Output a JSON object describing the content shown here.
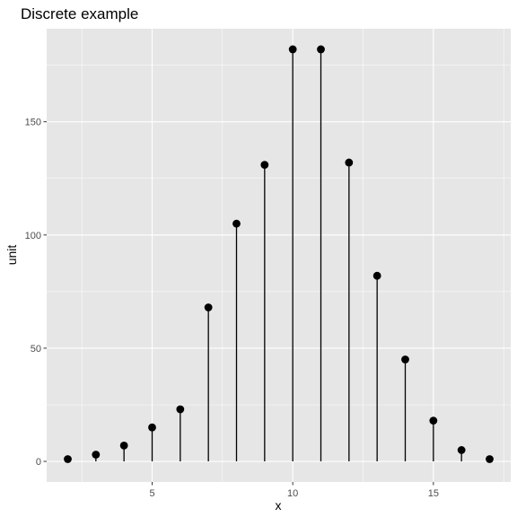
{
  "chart_data": {
    "type": "lollipop",
    "title": "Discrete example",
    "xlabel": "x",
    "ylabel": "unit",
    "x": [
      2,
      3,
      4,
      5,
      6,
      7,
      8,
      9,
      10,
      11,
      12,
      13,
      14,
      15,
      16,
      17
    ],
    "values": [
      1,
      3,
      7,
      15,
      23,
      68,
      105,
      131,
      182,
      182,
      132,
      82,
      45,
      18,
      5,
      1
    ],
    "xlim": [
      1.25,
      17.75
    ],
    "ylim": [
      -9.1,
      191.1
    ],
    "x_ticks": [
      5,
      10,
      15
    ],
    "x_tick_labels": [
      "5",
      "10",
      "15"
    ],
    "x_minor_ticks": [
      2.5,
      7.5,
      12.5,
      17.5
    ],
    "y_ticks": [
      0,
      50,
      100,
      150
    ],
    "y_tick_labels": [
      "0",
      "50",
      "100",
      "150"
    ],
    "y_minor_ticks": [
      25,
      75,
      125,
      175
    ],
    "grid": true,
    "colors": {
      "panel": "#e6e6e6",
      "grid": "#ffffff",
      "marks": "#000000",
      "tick_text": "#4d4d4d",
      "tick_line": "#333333"
    }
  }
}
